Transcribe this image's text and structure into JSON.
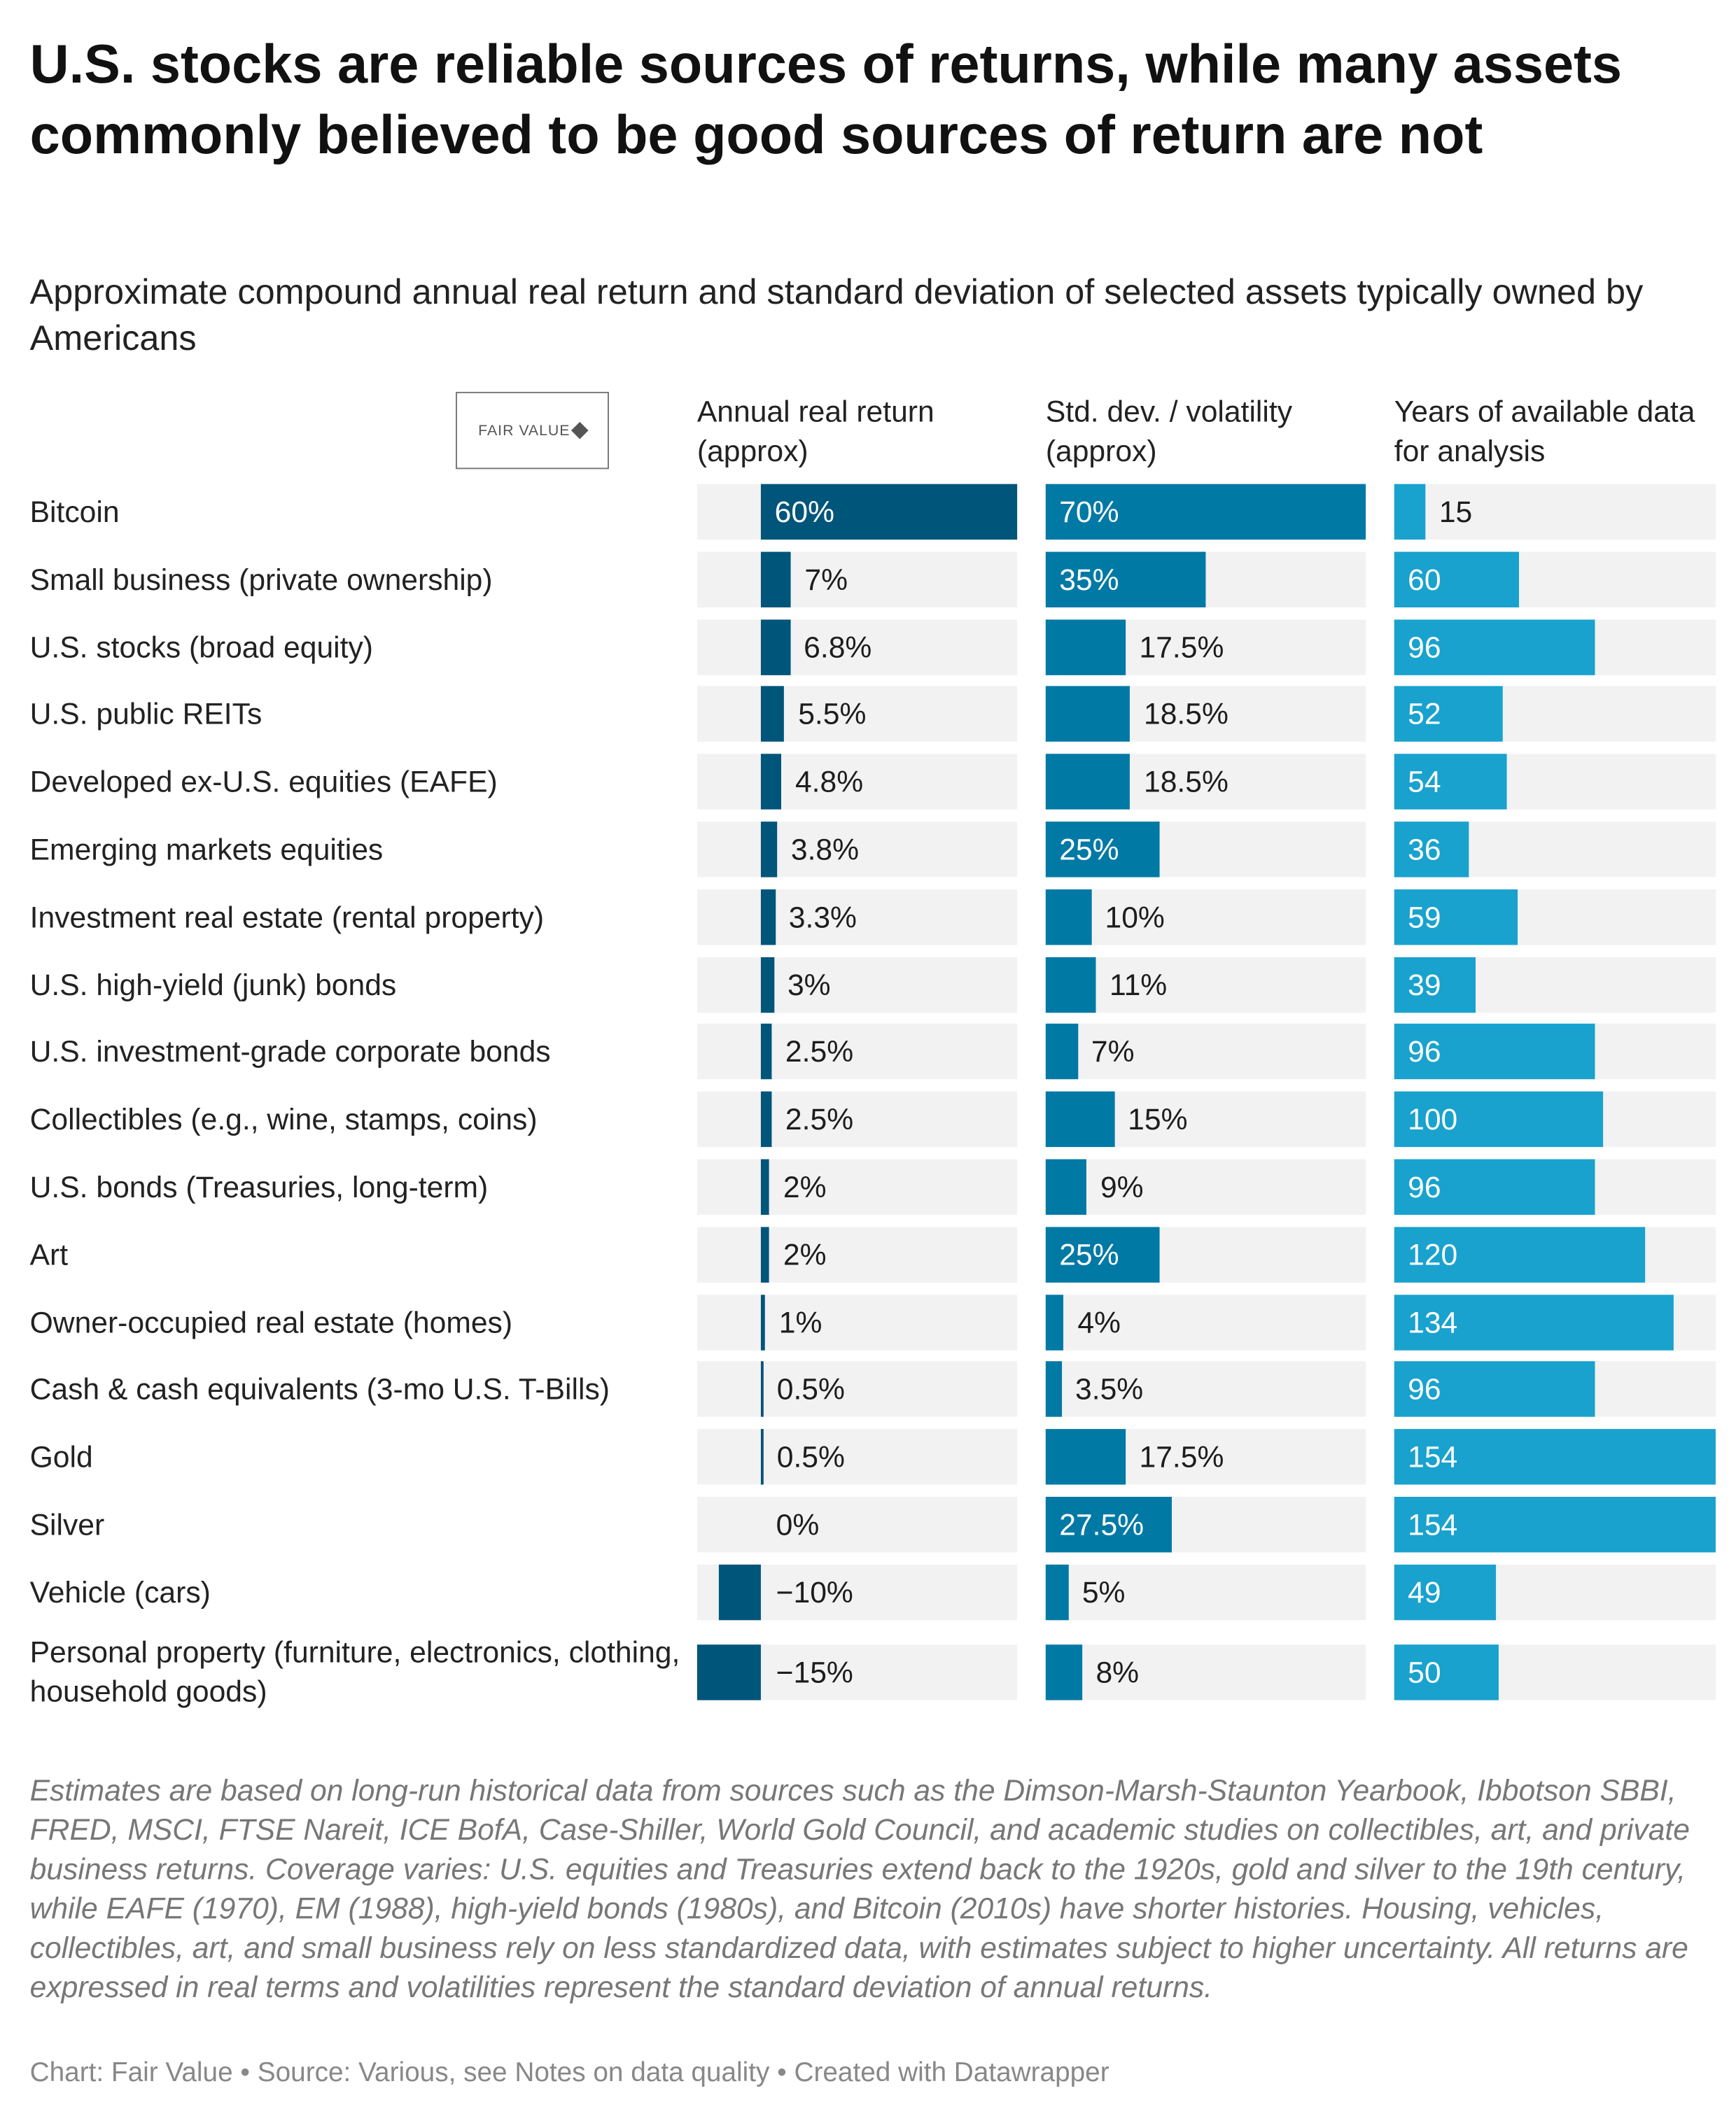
{
  "chart_data": {
    "type": "table",
    "title": "U.S. stocks are reliable sources of returns, while many assets commonly believed to be good sources of return are not",
    "subtitle": "Approximate compound annual real return and standard deviation of selected assets typically owned by Americans",
    "logo_text": "Fair Value",
    "columns": [
      {
        "header": "Annual real return (approx)",
        "range": [
          -15,
          60
        ],
        "color": "#00557a"
      },
      {
        "header": "Std. dev. / volatility (approx)",
        "range": [
          0,
          70
        ],
        "color": "#0179a5"
      },
      {
        "header": "Years of available data for analysis",
        "range": [
          0,
          154
        ],
        "color": "#19a2cd"
      }
    ],
    "rows": [
      {
        "label": "Bitcoin",
        "ret": 60,
        "ret_t": "60%",
        "sd": 70,
        "sd_t": "70%",
        "yrs": 15,
        "yrs_t": "15"
      },
      {
        "label": "Small business (private ownership)",
        "ret": 7,
        "ret_t": "7%",
        "sd": 35,
        "sd_t": "35%",
        "yrs": 60,
        "yrs_t": "60"
      },
      {
        "label": "U.S. stocks (broad equity)",
        "ret": 6.8,
        "ret_t": "6.8%",
        "sd": 17.5,
        "sd_t": "17.5%",
        "yrs": 96,
        "yrs_t": "96"
      },
      {
        "label": "U.S. public REITs",
        "ret": 5.5,
        "ret_t": "5.5%",
        "sd": 18.5,
        "sd_t": "18.5%",
        "yrs": 52,
        "yrs_t": "52"
      },
      {
        "label": "Developed ex-U.S. equities (EAFE)",
        "ret": 4.8,
        "ret_t": "4.8%",
        "sd": 18.5,
        "sd_t": "18.5%",
        "yrs": 54,
        "yrs_t": "54"
      },
      {
        "label": "Emerging markets equities",
        "ret": 3.8,
        "ret_t": "3.8%",
        "sd": 25,
        "sd_t": "25%",
        "yrs": 36,
        "yrs_t": "36"
      },
      {
        "label": "Investment real estate (rental property)",
        "ret": 3.3,
        "ret_t": "3.3%",
        "sd": 10,
        "sd_t": "10%",
        "yrs": 59,
        "yrs_t": "59"
      },
      {
        "label": "U.S. high-yield (junk) bonds",
        "ret": 3,
        "ret_t": "3%",
        "sd": 11,
        "sd_t": "11%",
        "yrs": 39,
        "yrs_t": "39"
      },
      {
        "label": "U.S. investment-grade corporate bonds",
        "ret": 2.5,
        "ret_t": "2.5%",
        "sd": 7,
        "sd_t": "7%",
        "yrs": 96,
        "yrs_t": "96"
      },
      {
        "label": "Collectibles (e.g., wine, stamps, coins)",
        "ret": 2.5,
        "ret_t": "2.5%",
        "sd": 15,
        "sd_t": "15%",
        "yrs": 100,
        "yrs_t": "100"
      },
      {
        "label": "U.S. bonds (Treasuries, long-term)",
        "ret": 2,
        "ret_t": "2%",
        "sd": 9,
        "sd_t": "9%",
        "yrs": 96,
        "yrs_t": "96"
      },
      {
        "label": "Art",
        "ret": 2,
        "ret_t": "2%",
        "sd": 25,
        "sd_t": "25%",
        "yrs": 120,
        "yrs_t": "120"
      },
      {
        "label": "Owner-occupied real estate (homes)",
        "ret": 1,
        "ret_t": "1%",
        "sd": 4,
        "sd_t": "4%",
        "yrs": 134,
        "yrs_t": "134"
      },
      {
        "label": "Cash & cash equivalents (3-mo U.S. T-Bills)",
        "ret": 0.5,
        "ret_t": "0.5%",
        "sd": 3.5,
        "sd_t": "3.5%",
        "yrs": 96,
        "yrs_t": "96"
      },
      {
        "label": "Gold",
        "ret": 0.5,
        "ret_t": "0.5%",
        "sd": 17.5,
        "sd_t": "17.5%",
        "yrs": 154,
        "yrs_t": "154"
      },
      {
        "label": "Silver",
        "ret": 0,
        "ret_t": "0%",
        "sd": 27.5,
        "sd_t": "27.5%",
        "yrs": 154,
        "yrs_t": "154"
      },
      {
        "label": "Vehicle (cars)",
        "ret": -10,
        "ret_t": "−10%",
        "sd": 5,
        "sd_t": "5%",
        "yrs": 49,
        "yrs_t": "49"
      },
      {
        "label": "Personal property (furniture, electronics, clothing, household goods)",
        "ret": -15,
        "ret_t": "−15%",
        "sd": 8,
        "sd_t": "8%",
        "yrs": 50,
        "yrs_t": "50"
      }
    ]
  },
  "note": "Estimates are based on long-run historical data from sources such as the Dimson-Marsh-Staunton Yearbook, Ibbotson SBBI, FRED, MSCI, FTSE Nareit, ICE BofA, Case-Shiller, World Gold Council, and academic studies on collectibles, art, and private business returns. Coverage varies: U.S. equities and Treasuries extend back to the 1920s, gold and silver to the 19th century, while EAFE (1970), EM (1988), high-yield bonds (1980s), and Bitcoin (2010s) have shorter histories. Housing, vehicles, collectibles, art, and small business rely on less standardized data, with estimates subject to higher uncertainty. All returns are expressed in real terms and volatilities represent the standard deviation of annual returns.",
  "footer": "Chart: Fair Value • Source: Various, see Notes on data quality • Created with Datawrapper"
}
